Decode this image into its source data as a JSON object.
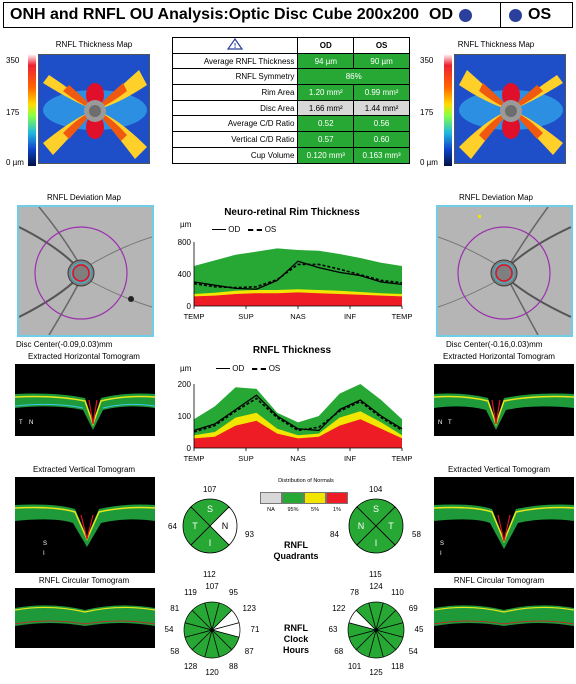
{
  "header": {
    "title": "ONH and RNFL OU Analysis:Optic Disc Cube 200x200",
    "od_label": "OD",
    "os_label": "OS"
  },
  "thickness_map": {
    "title": "RNFL Thickness Map",
    "scale_max": "350",
    "scale_mid": "175",
    "scale_min": "0 µm"
  },
  "table": {
    "warning_icon": "warning-triangle-icon",
    "col_od": "OD",
    "col_os": "OS",
    "rows": [
      {
        "name": "Average RNFL Thickness",
        "od": "94 µm",
        "os": "90 µm",
        "od_status": "normal",
        "os_status": "normal"
      },
      {
        "name": "RNFL Symmetry",
        "both": "86%",
        "status": "normal"
      },
      {
        "name": "Rim Area",
        "od": "1.20 mm²",
        "os": "0.99 mm²",
        "od_status": "normal",
        "os_status": "normal"
      },
      {
        "name": "Disc Area",
        "od": "1.66 mm²",
        "os": "1.44 mm²",
        "od_status": "na",
        "os_status": "na"
      },
      {
        "name": "Average C/D Ratio",
        "od": "0.52",
        "os": "0.56",
        "od_status": "normal",
        "os_status": "normal"
      },
      {
        "name": "Vertical C/D Ratio",
        "od": "0.57",
        "os": "0.60",
        "od_status": "normal",
        "os_status": "normal"
      },
      {
        "name": "Cup Volume",
        "od": "0.120 mm³",
        "os": "0.163 mm³",
        "od_status": "normal",
        "os_status": "normal"
      }
    ]
  },
  "deviation_map": {
    "title": "RNFL Deviation Map",
    "od_center": "Disc Center(-0.09,0.03)mm",
    "os_center": "Disc Center(-0.16,0.03)mm"
  },
  "tomograms": {
    "horizontal": "Extracted Horizontal Tomogram",
    "vertical": "Extracted Vertical Tomogram",
    "circular": "RNFL Circular Tomogram",
    "od_h_marks": [
      "T",
      "N"
    ],
    "od_v_marks": [
      "S",
      "I"
    ],
    "os_h_marks": [
      "N",
      "T"
    ],
    "os_v_marks": [
      "S",
      "I"
    ]
  },
  "colors": {
    "normal_green": "#27a834",
    "borderline_yellow": "#f2e600",
    "outside_red": "#ee1c24",
    "na_gray": "#d8d8d8",
    "od_line": "#000000",
    "os_line": "#000000"
  },
  "rim_chart": {
    "title": "Neuro-retinal Rim Thickness",
    "unit": "µm",
    "legend_od": "OD",
    "legend_os": "OS",
    "xticks": [
      "TEMP",
      "SUP",
      "NAS",
      "INF",
      "TEMP"
    ],
    "yticks": [
      "0",
      "400",
      "800"
    ]
  },
  "rnfl_chart": {
    "title": "RNFL Thickness",
    "unit": "µm",
    "legend_od": "OD",
    "legend_os": "OS",
    "xticks": [
      "TEMP",
      "SUP",
      "NAS",
      "INF",
      "TEMP"
    ],
    "yticks": [
      "0",
      "100",
      "200"
    ]
  },
  "distribution_legend": {
    "title_line1": "Distribution of Normals",
    "labels": [
      "NA",
      "95%",
      "5%",
      "1%"
    ]
  },
  "quadrants": {
    "label_line1": "RNFL",
    "label_line2": "Quadrants",
    "od": {
      "S": "107",
      "T": "64",
      "N": "93",
      "I": "112",
      "letters": [
        "S",
        "T",
        "N",
        "I"
      ],
      "status": [
        "normal",
        "normal",
        "white",
        "normal"
      ]
    },
    "os": {
      "S": "104",
      "N": "84",
      "T": "58",
      "I": "115",
      "letters": [
        "S",
        "N",
        "T",
        "I"
      ],
      "status": [
        "normal",
        "normal",
        "normal",
        "normal"
      ]
    }
  },
  "clock_hours": {
    "label_line1": "RNFL",
    "label_line2": "Clock",
    "label_line3": "Hours",
    "od": [
      "107",
      "95",
      "123",
      "71",
      "87",
      "88",
      "120",
      "128",
      "58",
      "54",
      "81",
      "119"
    ],
    "os": [
      "124",
      "110",
      "69",
      "45",
      "54",
      "118",
      "125",
      "101",
      "68",
      "63",
      "122",
      "78"
    ],
    "od_status": [
      "normal",
      "normal",
      "white",
      "white",
      "normal",
      "normal",
      "normal",
      "normal",
      "normal",
      "normal",
      "normal",
      "normal"
    ],
    "os_status": [
      "normal",
      "normal",
      "normal",
      "normal",
      "normal",
      "normal",
      "normal",
      "normal",
      "normal",
      "normal",
      "white",
      "normal"
    ]
  },
  "chart_data": [
    {
      "type": "area",
      "title": "Neuro-retinal Rim Thickness",
      "ylabel": "µm",
      "ylim": [
        0,
        800
      ],
      "xticks": [
        "TEMP",
        "SUP",
        "NAS",
        "INF",
        "TEMP"
      ],
      "x": [
        0,
        0.1,
        0.2,
        0.3,
        0.4,
        0.5,
        0.6,
        0.7,
        0.8,
        0.9,
        1.0
      ],
      "bands": {
        "red_1pct": [
          120,
          130,
          150,
          160,
          160,
          170,
          160,
          150,
          140,
          130,
          120
        ],
        "yellow_5pct": [
          150,
          165,
          190,
          200,
          200,
          210,
          200,
          190,
          175,
          160,
          150
        ],
        "green_95pct": [
          500,
          570,
          640,
          680,
          720,
          700,
          690,
          650,
          600,
          540,
          500
        ]
      },
      "series": [
        {
          "name": "OD",
          "values": [
            300,
            260,
            220,
            210,
            320,
            560,
            480,
            420,
            380,
            300,
            270
          ]
        },
        {
          "name": "OS",
          "values": [
            280,
            240,
            230,
            240,
            330,
            520,
            520,
            460,
            390,
            320,
            290
          ]
        }
      ]
    },
    {
      "type": "area",
      "title": "RNFL Thickness",
      "ylabel": "µm",
      "ylim": [
        0,
        200
      ],
      "xticks": [
        "TEMP",
        "SUP",
        "NAS",
        "INF",
        "TEMP"
      ],
      "x": [
        0,
        0.1,
        0.2,
        0.3,
        0.4,
        0.5,
        0.6,
        0.7,
        0.8,
        0.9,
        1.0
      ],
      "bands": {
        "red_1pct": [
          30,
          35,
          70,
          85,
          45,
          30,
          35,
          70,
          90,
          60,
          30
        ],
        "yellow_5pct": [
          40,
          50,
          95,
          110,
          60,
          40,
          45,
          95,
          115,
          80,
          40
        ],
        "green_95pct": [
          90,
          130,
          190,
          185,
          110,
          80,
          100,
          170,
          200,
          150,
          90
        ]
      },
      "series": [
        {
          "name": "OD",
          "values": [
            55,
            75,
            120,
            165,
            100,
            60,
            55,
            120,
            150,
            100,
            60
          ]
        },
        {
          "name": "OS",
          "values": [
            50,
            70,
            115,
            155,
            95,
            55,
            65,
            115,
            145,
            95,
            55
          ]
        }
      ]
    }
  ]
}
